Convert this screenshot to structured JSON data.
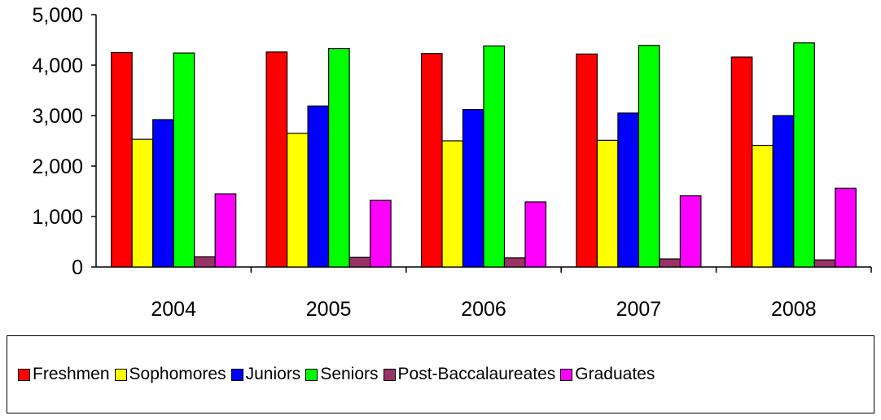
{
  "chart_data": {
    "type": "bar",
    "categories": [
      "2004",
      "2005",
      "2006",
      "2007",
      "2008"
    ],
    "series": [
      {
        "name": "Freshmen",
        "color": "#FF0000",
        "values": [
          4250,
          4260,
          4230,
          4220,
          4160
        ]
      },
      {
        "name": "Sophomores",
        "color": "#FFFF00",
        "values": [
          2530,
          2650,
          2500,
          2510,
          2410
        ]
      },
      {
        "name": "Juniors",
        "color": "#0000FF",
        "values": [
          2920,
          3190,
          3120,
          3050,
          3000
        ]
      },
      {
        "name": "Seniors",
        "color": "#00FF00",
        "values": [
          4240,
          4330,
          4380,
          4390,
          4440
        ]
      },
      {
        "name": "Post-Baccalaureates",
        "color": "#993366",
        "values": [
          200,
          190,
          180,
          160,
          140
        ]
      },
      {
        "name": "Graduates",
        "color": "#FF00FF",
        "values": [
          1450,
          1320,
          1290,
          1410,
          1560
        ]
      }
    ],
    "ylim": [
      0,
      5000
    ],
    "yticks": [
      "0",
      "1,000",
      "2,000",
      "3,000",
      "4,000",
      "5,000"
    ],
    "ytick_values": [
      0,
      1000,
      2000,
      3000,
      4000,
      5000
    ],
    "grid": false,
    "legend_position": "bottom"
  }
}
